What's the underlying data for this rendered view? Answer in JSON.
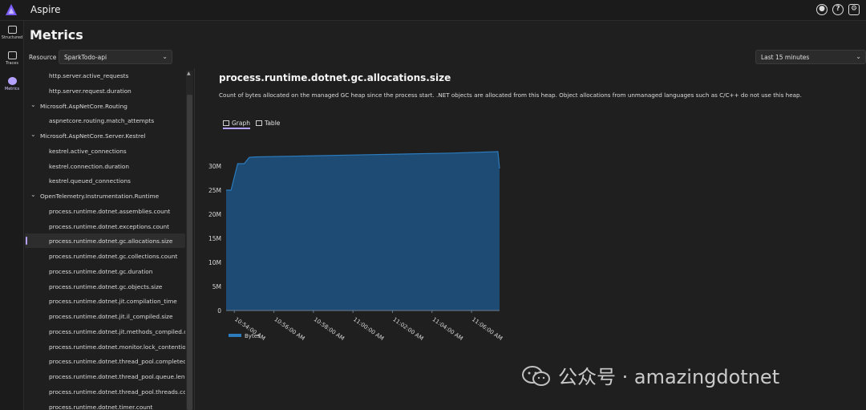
{
  "app": {
    "title": "Aspire"
  },
  "topbar": {
    "icons": [
      "github-icon",
      "help-icon",
      "settings-icon"
    ]
  },
  "rail": {
    "items": [
      {
        "label": "Structured",
        "icon": "structured-logs-icon"
      },
      {
        "label": "Traces",
        "icon": "traces-icon"
      },
      {
        "label": "Metrics",
        "icon": "metrics-icon",
        "active": true
      }
    ]
  },
  "page": {
    "title": "Metrics"
  },
  "resource": {
    "label": "Resource",
    "value": "SparkTodo-api"
  },
  "timerange": {
    "value": "Last 15 minutes"
  },
  "tree": {
    "rows": [
      {
        "text": "http.server.active_requests",
        "kind": "leaf"
      },
      {
        "text": "http.server.request.duration",
        "kind": "leaf"
      },
      {
        "text": "Microsoft.AspNetCore.Routing",
        "kind": "group"
      },
      {
        "text": "aspnetcore.routing.match_attempts",
        "kind": "leaf"
      },
      {
        "text": "Microsoft.AspNetCore.Server.Kestrel",
        "kind": "group"
      },
      {
        "text": "kestrel.active_connections",
        "kind": "leaf"
      },
      {
        "text": "kestrel.connection.duration",
        "kind": "leaf"
      },
      {
        "text": "kestrel.queued_connections",
        "kind": "leaf"
      },
      {
        "text": "OpenTelemetry.Instrumentation.Runtime",
        "kind": "group"
      },
      {
        "text": "process.runtime.dotnet.assemblies.count",
        "kind": "leaf"
      },
      {
        "text": "process.runtime.dotnet.exceptions.count",
        "kind": "leaf"
      },
      {
        "text": "process.runtime.dotnet.gc.allocations.size",
        "kind": "leaf",
        "selected": true
      },
      {
        "text": "process.runtime.dotnet.gc.collections.count",
        "kind": "leaf"
      },
      {
        "text": "process.runtime.dotnet.gc.duration",
        "kind": "leaf"
      },
      {
        "text": "process.runtime.dotnet.gc.objects.size",
        "kind": "leaf"
      },
      {
        "text": "process.runtime.dotnet.jit.compilation_time",
        "kind": "leaf"
      },
      {
        "text": "process.runtime.dotnet.jit.il_compiled.size",
        "kind": "leaf"
      },
      {
        "text": "process.runtime.dotnet.jit.methods_compiled.count",
        "kind": "leaf"
      },
      {
        "text": "process.runtime.dotnet.monitor.lock_contention.count",
        "kind": "leaf"
      },
      {
        "text": "process.runtime.dotnet.thread_pool.completed_items.count",
        "kind": "leaf"
      },
      {
        "text": "process.runtime.dotnet.thread_pool.queue.length",
        "kind": "leaf"
      },
      {
        "text": "process.runtime.dotnet.thread_pool.threads.count",
        "kind": "leaf"
      },
      {
        "text": "process.runtime.dotnet.timer.count",
        "kind": "leaf"
      }
    ]
  },
  "metric": {
    "title": "process.runtime.dotnet.gc.allocations.size",
    "description": "Count of bytes allocated on the managed GC heap since the process start. .NET objects are allocated from this heap. Object allocations from unmanaged languages such as C/C++ do not use this heap."
  },
  "tabs": [
    {
      "label": "Graph",
      "icon": "graph-icon",
      "active": true
    },
    {
      "label": "Table",
      "icon": "table-icon"
    }
  ],
  "chart_data": {
    "type": "area",
    "series": [
      {
        "name": "Bytes",
        "color": "#1f4e79",
        "line_color": "#2b7bbd",
        "x": [
          "10:53:35 AM",
          "10:53:50 AM",
          "10:54:10 AM",
          "10:54:30 AM",
          "10:54:45 AM",
          "10:55:00 AM",
          "11:00:00 AM",
          "11:05:00 AM",
          "11:07:20 AM",
          "11:07:25 AM"
        ],
        "values": [
          25000000,
          25000000,
          30500000,
          30500000,
          31800000,
          31900000,
          32300000,
          32700000,
          33000000,
          29500000
        ]
      }
    ],
    "x_ticks": [
      "10:54:00 AM",
      "10:56:00 AM",
      "10:58:00 AM",
      "11:00:00 AM",
      "11:02:00 AM",
      "11:04:00 AM",
      "11:06:00 AM"
    ],
    "y_ticks": [
      "0",
      "5M",
      "10M",
      "15M",
      "20M",
      "25M",
      "30M"
    ],
    "ylim": [
      0,
      35000000
    ],
    "legend": [
      "Bytes"
    ],
    "legend_position": "bottom-left",
    "grid": false
  },
  "watermark": {
    "text": "公众号 · amazingdotnet"
  }
}
